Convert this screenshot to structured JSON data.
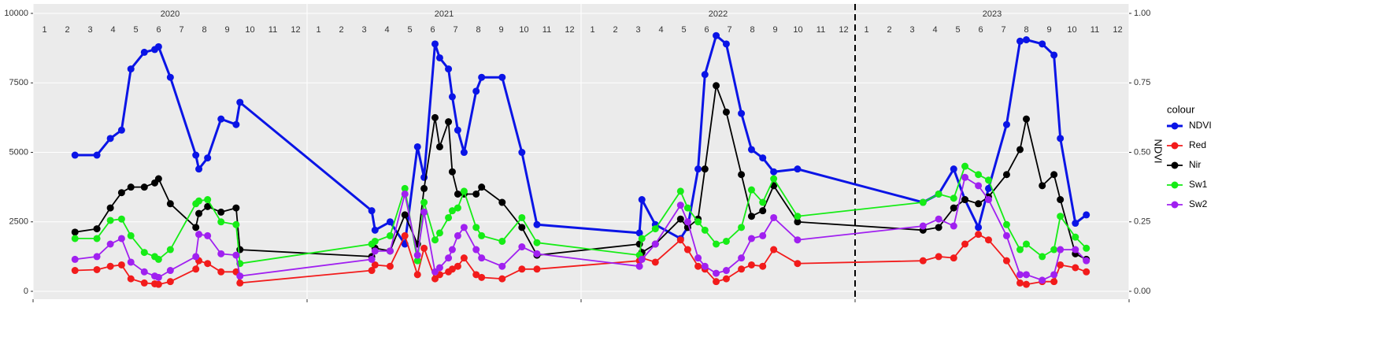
{
  "chart_data": {
    "type": "line",
    "y2_label": "NDVI",
    "legend_title": "colour",
    "legend": "right",
    "grid": true,
    "year_labels": [
      "2020",
      "2021",
      "2022",
      "2023"
    ],
    "month_labels": [
      "1",
      "2",
      "3",
      "4",
      "5",
      "6",
      "7",
      "8",
      "9",
      "10",
      "11",
      "12"
    ],
    "vline": 2023,
    "xlim": [
      2020,
      2024
    ],
    "xticks": [
      2020,
      2021,
      2022,
      2023,
      2024
    ],
    "ylim": [
      -283,
      10340
    ],
    "yticks": [
      0,
      2500,
      5000,
      7500,
      10000
    ],
    "y2lim": [
      -0.0283,
      1.034
    ],
    "y2ticks": [
      {
        "value": 0,
        "label": "0.00"
      },
      {
        "value": 0.25,
        "label": "0.25"
      },
      {
        "value": 0.5,
        "label": "0.50"
      },
      {
        "value": 0.75,
        "label": "0.75"
      },
      {
        "value": 1,
        "label": "1.00"
      }
    ],
    "x": [
      2020.153,
      2020.233,
      2020.282,
      2020.323,
      2020.357,
      2020.406,
      2020.444,
      2020.458,
      2020.501,
      2020.594,
      2020.605,
      2020.637,
      2020.686,
      2020.741,
      2020.755,
      2021.236,
      2021.248,
      2021.303,
      2021.357,
      2021.403,
      2021.427,
      2021.467,
      2021.484,
      2021.516,
      2021.53,
      2021.55,
      2021.573,
      2021.617,
      2021.637,
      2021.712,
      2021.784,
      2021.839,
      2022.213,
      2022.222,
      2022.271,
      2022.363,
      2022.389,
      2022.427,
      2022.452,
      2022.493,
      2022.53,
      2022.585,
      2022.622,
      2022.663,
      2022.703,
      2022.79,
      2023.248,
      2023.305,
      2023.36,
      2023.401,
      2023.45,
      2023.487,
      2023.553,
      2023.602,
      2023.625,
      2023.683,
      2023.726,
      2023.749,
      2023.804,
      2023.844
    ],
    "series": [
      {
        "name": "NDVI",
        "color": "#0a14e6",
        "axis": "y2",
        "values": [
          0.49,
          0.49,
          0.55,
          0.58,
          0.8,
          0.86,
          0.87,
          0.88,
          0.77,
          0.49,
          0.44,
          0.48,
          0.62,
          0.6,
          0.68,
          0.29,
          0.22,
          0.25,
          0.17,
          0.52,
          0.41,
          0.89,
          0.84,
          0.8,
          0.7,
          0.58,
          0.5,
          0.72,
          0.77,
          0.77,
          0.5,
          0.24,
          0.21,
          0.33,
          0.24,
          0.19,
          0.23,
          0.44,
          0.78,
          0.92,
          0.89,
          0.64,
          0.51,
          0.48,
          0.43,
          0.44,
          0.32,
          0.35,
          0.44,
          0.33,
          0.23,
          0.37,
          0.6,
          0.9,
          0.905,
          0.89,
          0.85,
          0.55,
          0.245,
          0.275
        ]
      },
      {
        "name": "Red",
        "color": "#f21b1b",
        "values": [
          750,
          780,
          900,
          950,
          450,
          300,
          270,
          250,
          350,
          800,
          1100,
          1000,
          700,
          700,
          300,
          750,
          950,
          900,
          2000,
          600,
          1550,
          450,
          600,
          700,
          800,
          900,
          1200,
          600,
          500,
          450,
          800,
          800,
          1100,
          1200,
          1050,
          1850,
          1500,
          900,
          800,
          350,
          450,
          800,
          950,
          900,
          1500,
          1000,
          1100,
          1250,
          1200,
          1700,
          2050,
          1850,
          1100,
          300,
          250,
          350,
          350,
          950,
          850,
          700
        ]
      },
      {
        "name": "Nir",
        "color": "#000000",
        "values": [
          2130,
          2250,
          3000,
          3550,
          3750,
          3750,
          3900,
          4050,
          3150,
          2300,
          2800,
          3050,
          2850,
          3000,
          1500,
          1250,
          1550,
          1450,
          2750,
          1700,
          3700,
          6250,
          5200,
          6100,
          4300,
          3500,
          3500,
          3500,
          3750,
          3200,
          2300,
          1300,
          1700,
          1400,
          1700,
          2600,
          2300,
          2600,
          4400,
          7400,
          6450,
          4200,
          2700,
          2900,
          3800,
          2500,
          2200,
          2300,
          3000,
          3300,
          3150,
          3400,
          4200,
          5100,
          6200,
          3800,
          4200,
          3300,
          1350,
          1150
        ]
      },
      {
        "name": "Sw1",
        "color": "#16ec16",
        "values": [
          1900,
          1900,
          2550,
          2600,
          2000,
          1400,
          1250,
          1150,
          1500,
          3150,
          3250,
          3300,
          2500,
          2400,
          1000,
          1700,
          1800,
          2000,
          3700,
          1100,
          3200,
          1850,
          2100,
          2650,
          2900,
          3000,
          3600,
          2300,
          2000,
          1800,
          2650,
          1750,
          1300,
          1900,
          2250,
          3600,
          3000,
          2500,
          2200,
          1700,
          1800,
          2300,
          3650,
          3200,
          4050,
          2700,
          3200,
          3500,
          3350,
          4500,
          4200,
          4000,
          2400,
          1500,
          1700,
          1250,
          1500,
          2700,
          1950,
          1550
        ]
      },
      {
        "name": "Sw2",
        "color": "#a020f0",
        "values": [
          1150,
          1250,
          1700,
          1900,
          1050,
          700,
          550,
          500,
          750,
          1250,
          2050,
          2000,
          1350,
          1300,
          550,
          1150,
          1450,
          1450,
          3500,
          1300,
          2850,
          700,
          850,
          1200,
          1500,
          2000,
          2300,
          1500,
          1200,
          900,
          1600,
          1350,
          900,
          1150,
          1700,
          3100,
          2500,
          1200,
          900,
          650,
          750,
          1200,
          1900,
          2000,
          2650,
          1850,
          2350,
          2600,
          2350,
          4100,
          3800,
          3300,
          2000,
          600,
          600,
          400,
          600,
          1500,
          1500,
          1100
        ]
      }
    ]
  }
}
